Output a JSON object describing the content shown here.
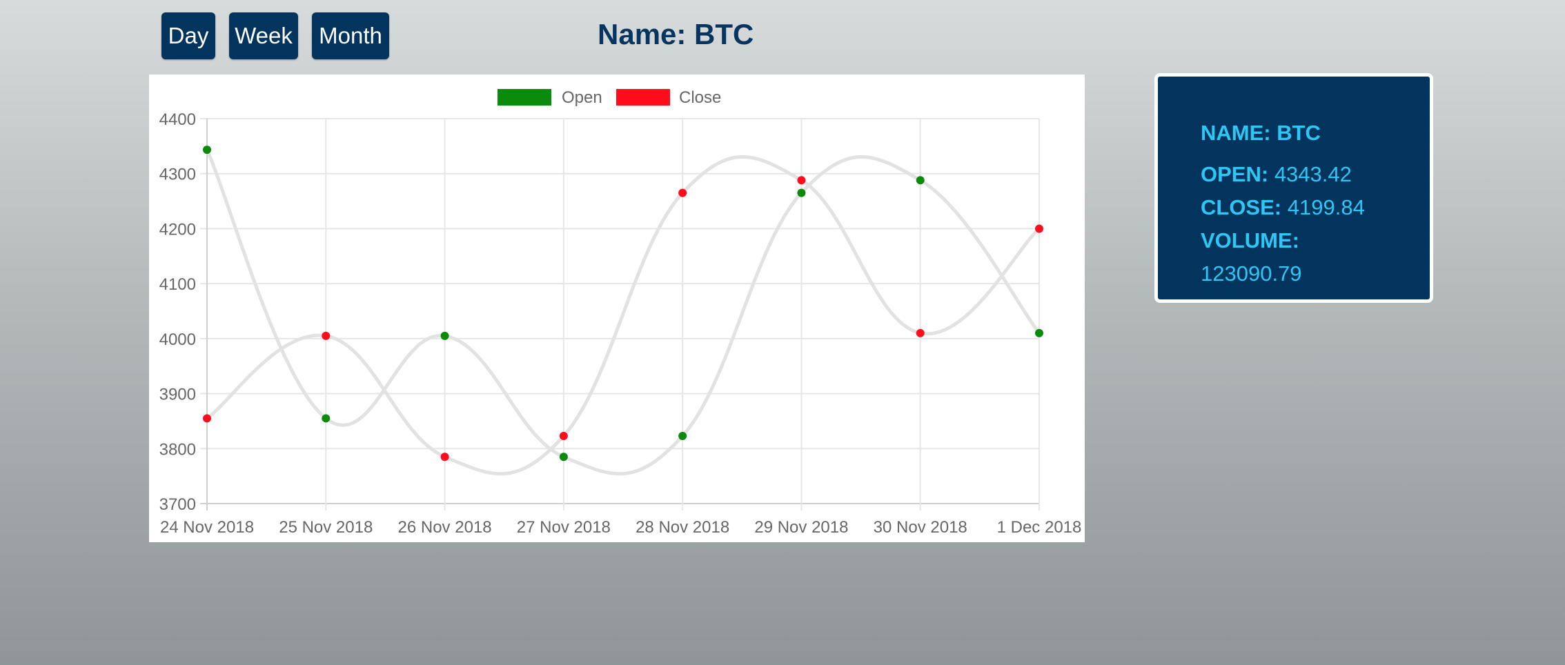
{
  "controls": {
    "day_label": "Day",
    "week_label": "Week",
    "month_label": "Month"
  },
  "header": {
    "title": "Name: BTC"
  },
  "info": {
    "name_label": "NAME:",
    "name_value": "BTC",
    "open_label": "OPEN:",
    "open_value": "4343.42",
    "close_label": "CLOSE:",
    "close_value": "4199.84",
    "volume_label": "VOLUME:",
    "volume_value": "123090.79"
  },
  "colors": {
    "button_bg": "#03345d",
    "info_text": "#2ec6f2",
    "open": "#0b8a0b",
    "close": "#ff0d1c",
    "line": "#e2e2e2"
  },
  "chart_data": {
    "type": "line",
    "title": "",
    "xlabel": "",
    "ylabel": "",
    "categories": [
      "24 Nov 2018",
      "25 Nov 2018",
      "26 Nov 2018",
      "27 Nov 2018",
      "28 Nov 2018",
      "29 Nov 2018",
      "30 Nov 2018",
      "1 Dec 2018"
    ],
    "series": [
      {
        "name": "Open",
        "color": "#0b8a0b",
        "values": [
          4343.42,
          3855,
          4005,
          3785,
          3823,
          4265,
          4288,
          4010
        ]
      },
      {
        "name": "Close",
        "color": "#ff0d1c",
        "values": [
          3855,
          4005,
          3785,
          3823,
          4265,
          4288,
          4010,
          4199.84
        ]
      }
    ],
    "ylim": [
      3700,
      4400
    ],
    "yticks": [
      "3700",
      "3800",
      "3900",
      "4000",
      "4100",
      "4200",
      "4300",
      "4400"
    ],
    "grid": true,
    "legend": "top"
  }
}
